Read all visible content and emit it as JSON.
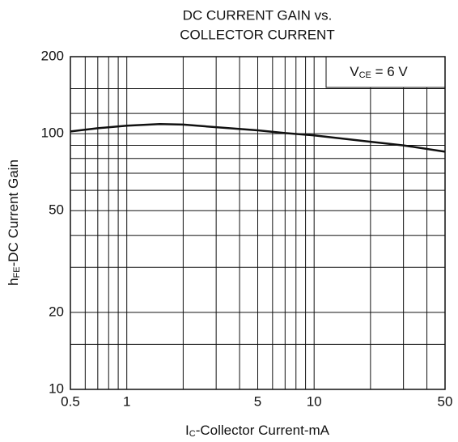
{
  "chart_data": {
    "type": "line",
    "title": [
      "DC CURRENT GAIN vs.",
      "COLLECTOR CURRENT"
    ],
    "x_label": {
      "main": "I",
      "sub": "C",
      "rest": "-Collector Current-mA"
    },
    "y_label": {
      "main": "h",
      "sub": "FE",
      "rest": "-DC Current Gain"
    },
    "annotation": {
      "main": "V",
      "sub": "CE",
      "rest": " = 6 V"
    },
    "log_x": true,
    "log_y": true,
    "xlim": [
      0.5,
      50
    ],
    "ylim": [
      10,
      200
    ],
    "xticks": [
      0.5,
      1,
      5,
      10,
      50
    ],
    "yticks": [
      10,
      20,
      50,
      100,
      200
    ],
    "minor_xticks": [
      0.6,
      0.7,
      0.8,
      0.9,
      2,
      3,
      4,
      6,
      7,
      8,
      9,
      20,
      30,
      40
    ],
    "minor_yticks": [
      15,
      30,
      40,
      60,
      70,
      80,
      90,
      120,
      150
    ],
    "grid": true,
    "series": [
      {
        "name": "VCE = 6 V",
        "color": "#111111",
        "x": [
          0.5,
          0.7,
          1,
          1.5,
          2,
          3,
          5,
          7,
          10,
          20,
          30,
          50
        ],
        "values": [
          102,
          105,
          107.5,
          109,
          108.5,
          106,
          103,
          100.5,
          98.5,
          93,
          90,
          85
        ]
      }
    ]
  }
}
